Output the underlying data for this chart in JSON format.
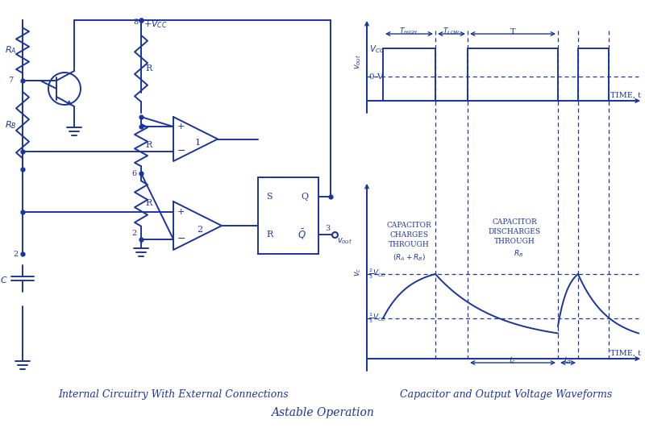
{
  "color": "#1a35a0",
  "bg_color": "#ffffff",
  "title": "Astable Operation",
  "subtitle_left": "Internal Circuitry With External Connections",
  "subtitle_right": "Capacitor and Output Voltage Waveforms",
  "fig_width": 8.0,
  "fig_height": 5.31
}
